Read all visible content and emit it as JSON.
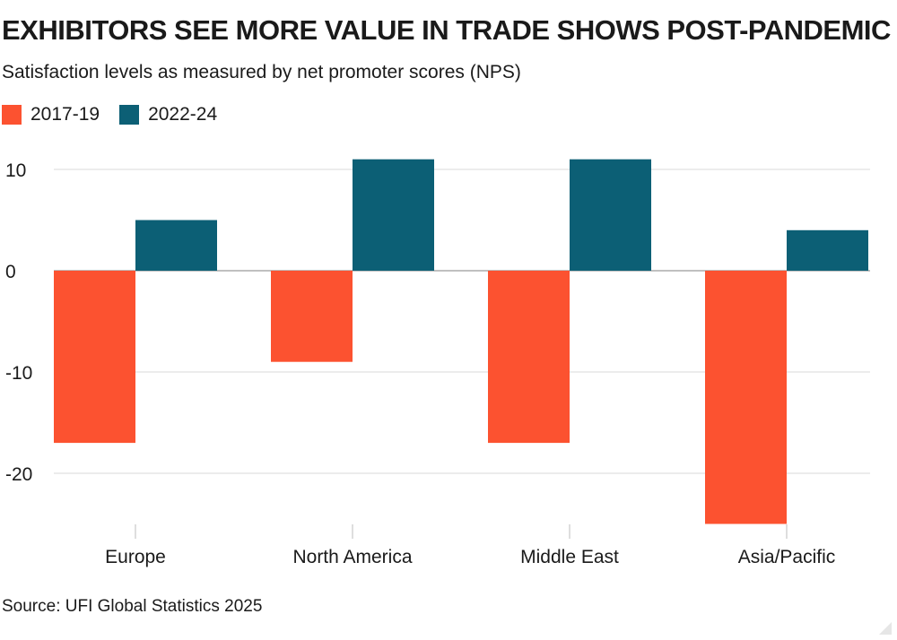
{
  "chart_data": {
    "type": "bar",
    "title": "EXHIBITORS SEE MORE VALUE IN TRADE SHOWS POST-PANDEMIC",
    "subtitle": "Satisfaction levels as measured by net promoter scores (NPS)",
    "categories": [
      "Europe",
      "North America",
      "Middle East",
      "Asia/Pacific"
    ],
    "series": [
      {
        "name": "2017-19",
        "color": "#fc5230",
        "values": [
          -17,
          -9,
          -17,
          -25
        ]
      },
      {
        "name": "2022-24",
        "color": "#0c5f75",
        "values": [
          5,
          11,
          11,
          4
        ]
      }
    ],
    "yticks": [
      10,
      0,
      -10,
      -20
    ],
    "ytick_labels": [
      "10",
      "0",
      "-10",
      "-20"
    ],
    "ylim": [
      -26,
      11
    ],
    "xlabel": "",
    "ylabel": "",
    "grid": true,
    "legend_position": "top-left",
    "source": "Source: UFI Global Statistics 2025"
  }
}
